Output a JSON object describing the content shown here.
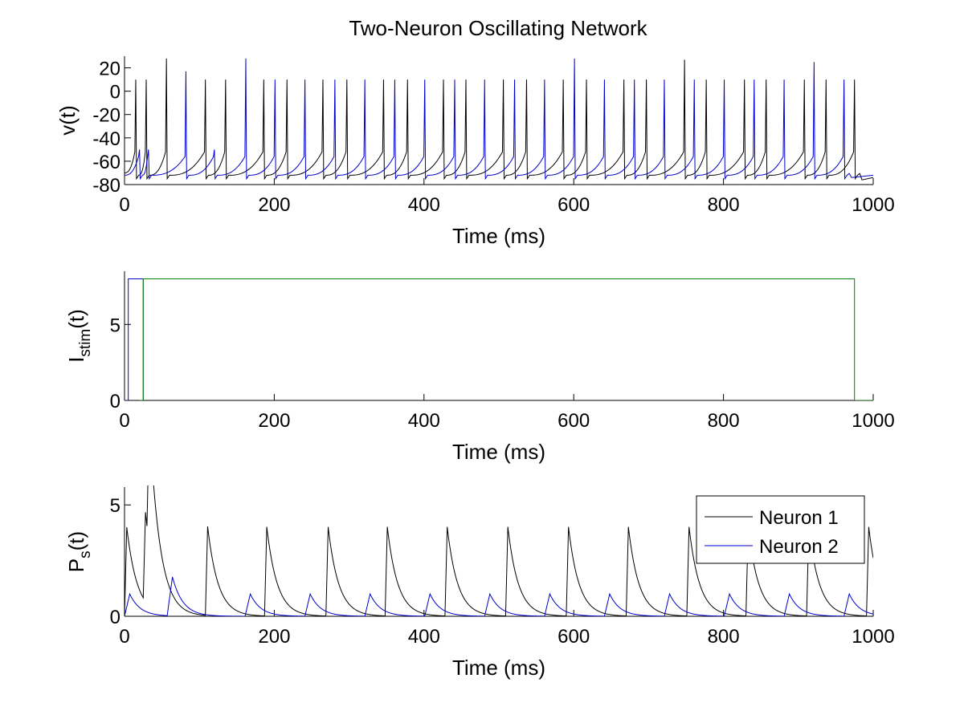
{
  "figure": {
    "title": "Two-Neuron Oscillating Network"
  },
  "chart_data": [
    {
      "type": "line",
      "title": "Two-Neuron Oscillating Network",
      "xlabel": "Time (ms)",
      "ylabel": "v(t)",
      "xlim": [
        0,
        1000
      ],
      "ylim": [
        -80,
        30
      ],
      "xticks": [
        0,
        200,
        400,
        600,
        800,
        1000
      ],
      "yticks": [
        -80,
        -60,
        -40,
        -20,
        0,
        20
      ],
      "grid": false,
      "series": [
        {
          "color": "#000000",
          "model": "spiking",
          "v_rest": -70,
          "v_reset": -72,
          "v_threshold": -52,
          "v_end": -76,
          "spike_times": [
            15,
            29,
            56,
            108,
            135,
            186,
            217,
            265,
            297,
            346,
            378,
            426,
            456,
            506,
            537,
            586,
            617,
            667,
            697,
            748,
            777,
            828,
            857,
            908,
            937,
            975
          ],
          "spike_peaks": [
            10,
            10,
            28,
            10,
            10,
            10,
            10,
            10,
            10,
            10,
            10,
            10,
            10,
            10,
            10,
            10,
            10,
            10,
            10,
            27,
            10,
            10,
            10,
            10,
            10,
            10
          ]
        },
        {
          "color": "#0000cc",
          "model": "spiking",
          "v_rest": -72,
          "v_reset": -72,
          "v_threshold": -56,
          "v_end": -74,
          "spike_times": [
            20,
            32,
            82,
            120,
            162,
            201,
            241,
            281,
            321,
            361,
            401,
            441,
            481,
            521,
            561,
            601,
            641,
            681,
            721,
            761,
            801,
            841,
            881,
            921,
            961
          ],
          "spike_peaks": [
            -50,
            -50,
            17,
            -50,
            28,
            10,
            10,
            10,
            10,
            10,
            10,
            10,
            10,
            10,
            10,
            28,
            10,
            10,
            10,
            10,
            10,
            10,
            10,
            25,
            10
          ]
        }
      ]
    },
    {
      "type": "line",
      "xlabel": "Time (ms)",
      "ylabel": "I",
      "ylabel_sub": "stim",
      "ylabel_suffix": "(t)",
      "xlim": [
        0,
        1000
      ],
      "ylim": [
        0,
        8.5
      ],
      "xticks": [
        0,
        200,
        400,
        600,
        800,
        1000
      ],
      "yticks": [
        0,
        5
      ],
      "grid": false,
      "series": [
        {
          "color": "#0000cc",
          "x": [
            0,
            5,
            5,
            25,
            25
          ],
          "y": [
            0,
            0,
            8,
            8,
            0
          ]
        },
        {
          "color": "#008000",
          "x": [
            20,
            25,
            25,
            975,
            975,
            1000
          ],
          "y": [
            0,
            0,
            8,
            8,
            0,
            0
          ]
        }
      ]
    },
    {
      "type": "line",
      "xlabel": "Time (ms)",
      "ylabel": "P",
      "ylabel_sub": "s",
      "ylabel_suffix": "(t)",
      "xlim": [
        0,
        1000
      ],
      "ylim": [
        0,
        5.8
      ],
      "xticks": [
        0,
        200,
        400,
        600,
        800,
        1000
      ],
      "yticks": [
        0,
        5
      ],
      "grid": false,
      "legend": "top-right",
      "series": [
        {
          "name": "Neuron 1",
          "color": "#000000",
          "model": "pulses",
          "rise_ms": 3,
          "decay_ms": 14,
          "pulses": [
            [
              0,
              4.0
            ],
            [
              25,
              4.0
            ],
            [
              30,
              5.7
            ],
            [
              108,
              4.0
            ],
            [
              187,
              4.0
            ],
            [
              269,
              4.0
            ],
            [
              348,
              4.0
            ],
            [
              428,
              4.0
            ],
            [
              509,
              4.0
            ],
            [
              590,
              4.0
            ],
            [
              670,
              4.0
            ],
            [
              751,
              4.0
            ],
            [
              830,
              4.0
            ],
            [
              911,
              4.0
            ],
            [
              991,
              4.0
            ]
          ]
        },
        {
          "name": "Neuron 2",
          "color": "#0000cc",
          "model": "pulses",
          "rise_ms": 7,
          "decay_ms": 14,
          "pulses": [
            [
              0,
              1.0
            ],
            [
              57,
              1.75
            ],
            [
              161,
              1.0
            ],
            [
              241,
              1.0
            ],
            [
              321,
              1.0
            ],
            [
              401,
              1.0
            ],
            [
              481,
              1.0
            ],
            [
              561,
              1.0
            ],
            [
              641,
              1.0
            ],
            [
              721,
              1.0
            ],
            [
              801,
              1.0
            ],
            [
              881,
              1.0
            ],
            [
              961,
              1.0
            ]
          ]
        }
      ]
    }
  ]
}
